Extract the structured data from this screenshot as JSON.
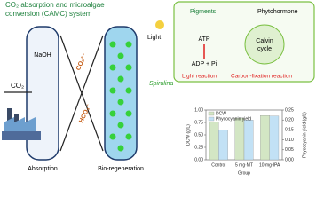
{
  "diagram": {
    "title_lines": [
      "CO₂ absorption and microalgae",
      "conversion (CAMC) system"
    ],
    "co2": "CO₂",
    "naoh": "NaOH",
    "co3": "CO₃²⁻",
    "hco3": "HCO₃⁻",
    "light": "Light",
    "spirulina": "Spirulina",
    "absorption": "Absorption",
    "bioregeneration": "Bio-regeneration",
    "pigments": "Pigments",
    "phytohormone": "Phytohormone",
    "atp": "ATP",
    "adp": "ADP + Pi",
    "calvin_lines": [
      "Calvin",
      "cycle"
    ],
    "light_reaction": "Light reaction",
    "carbon_fixation": "Carbon-fixation reaction"
  },
  "chart_data": {
    "type": "bar",
    "categories": [
      "Control",
      "5 mg·MT",
      "10 mg·IPA"
    ],
    "xlabel": "Group",
    "ylabel": "DCW (g/L)",
    "y2label": "Phycocyanin yield (g/L)",
    "series": [
      {
        "name": "DCW",
        "color": "#d3e6c4",
        "values": [
          0.76,
          0.84,
          0.89
        ]
      },
      {
        "name": "Phycocyanin yield",
        "color": "#c2e1f5",
        "values": [
          0.15,
          0.2,
          0.22
        ],
        "axis": "y2"
      }
    ],
    "ylim": [
      0,
      1
    ],
    "yticks": [
      {
        "value": 0,
        "label": "0.00"
      },
      {
        "value": 0.25,
        "label": "0.25"
      },
      {
        "value": 0.5,
        "label": "0.50"
      },
      {
        "value": 0.75,
        "label": "0.75"
      },
      {
        "value": 1,
        "label": "1.00"
      }
    ],
    "y2lim": [
      0,
      0.25
    ],
    "y2ticks": [
      {
        "value": 0,
        "label": "0.00"
      },
      {
        "value": 0.05,
        "label": "0.05"
      },
      {
        "value": 0.1,
        "label": "0.10"
      },
      {
        "value": 0.15,
        "label": "0.15"
      },
      {
        "value": 0.2,
        "label": "0.20"
      },
      {
        "value": 0.25,
        "label": "0.25"
      }
    ],
    "legend": "upper left"
  }
}
